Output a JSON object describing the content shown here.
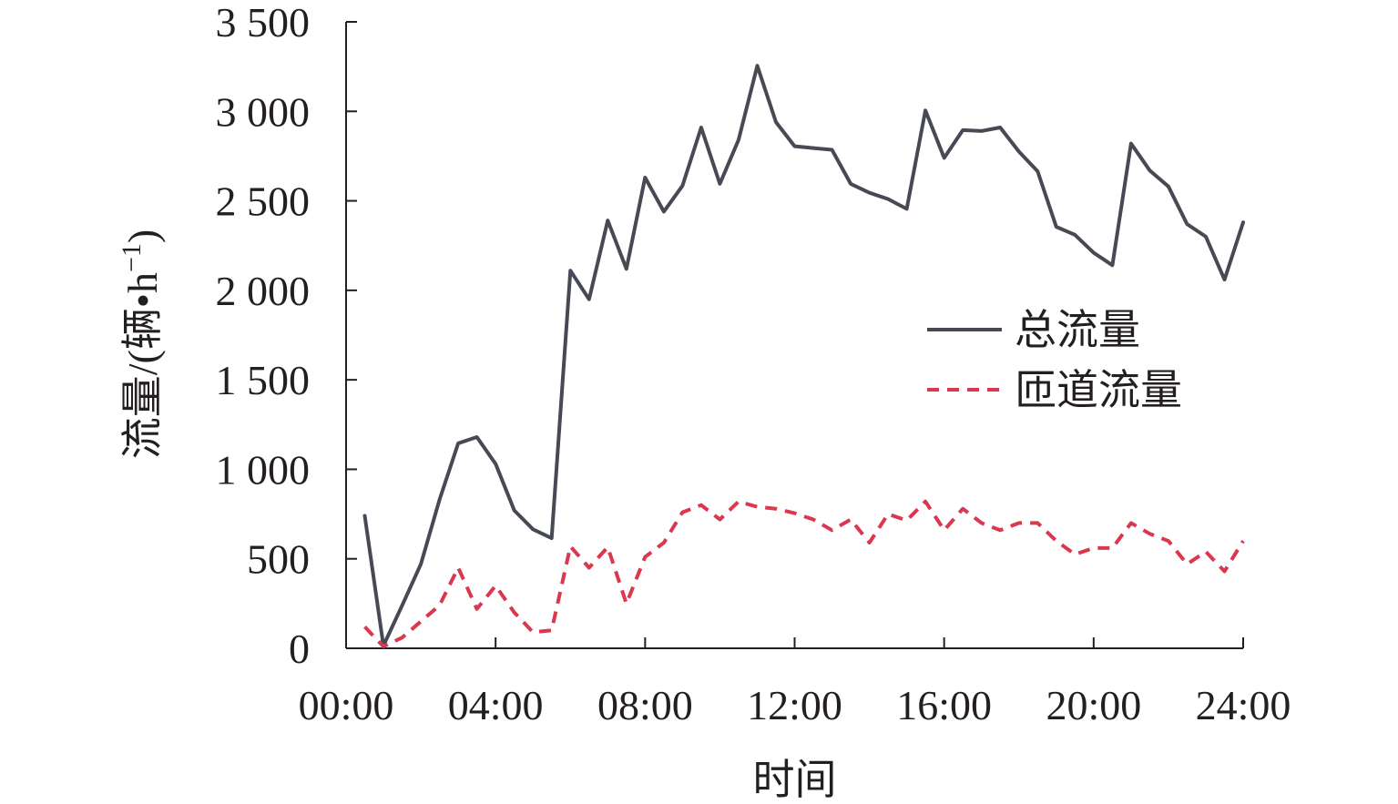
{
  "chart_data": {
    "type": "line",
    "xlabel": "时间",
    "ylabel": "流量/(辆•h",
    "ylabel_sup": "−1",
    "ylabel_close": ")",
    "xlim": [
      0,
      24
    ],
    "ylim": [
      0,
      3500
    ],
    "x_ticks": [
      0,
      4,
      8,
      12,
      16,
      20,
      24
    ],
    "x_tick_labels": [
      "00:00",
      "04:00",
      "08:00",
      "12:00",
      "16:00",
      "20:00",
      "24:00"
    ],
    "y_ticks": [
      0,
      500,
      1000,
      1500,
      2000,
      2500,
      3000,
      3500
    ],
    "y_tick_labels": [
      "0",
      "500",
      "1 000",
      "1 500",
      "2 000",
      "2 500",
      "3 000",
      "3 500"
    ],
    "grid": false,
    "legend_position": "right-middle",
    "x": [
      0.5,
      1,
      1.5,
      2,
      2.5,
      3,
      3.5,
      4,
      4.5,
      5,
      5.5,
      6,
      6.5,
      7,
      7.5,
      8,
      8.5,
      9,
      9.5,
      10,
      10.5,
      11,
      11.5,
      12,
      12.5,
      13,
      13.5,
      14,
      14.5,
      15,
      15.5,
      16,
      16.5,
      17,
      17.5,
      18,
      18.5,
      19,
      19.5,
      20,
      20.5,
      21,
      21.5,
      22,
      22.5,
      23,
      23.5,
      24
    ],
    "series": [
      {
        "name": "总流量",
        "color": "#474a54",
        "dash": "solid",
        "values": [
          740,
          15,
          240,
          470,
          830,
          1145,
          1180,
          1030,
          770,
          665,
          615,
          2110,
          1950,
          2390,
          2120,
          2630,
          2440,
          2585,
          2910,
          2595,
          2840,
          3255,
          2940,
          2805,
          2795,
          2785,
          2595,
          2545,
          2510,
          2455,
          3005,
          2740,
          2895,
          2890,
          2910,
          2775,
          2665,
          2355,
          2310,
          2210,
          2140,
          2820,
          2670,
          2580,
          2370,
          2300,
          2060,
          2380
        ]
      },
      {
        "name": "匝道流量",
        "color": "#d9384e",
        "dash": "dashed",
        "values": [
          120,
          10,
          60,
          150,
          240,
          450,
          220,
          350,
          200,
          90,
          100,
          570,
          450,
          565,
          250,
          510,
          590,
          760,
          800,
          720,
          820,
          790,
          780,
          755,
          720,
          660,
          720,
          590,
          750,
          715,
          820,
          660,
          780,
          700,
          660,
          700,
          700,
          600,
          525,
          560,
          560,
          700,
          640,
          600,
          470,
          540,
          430,
          600
        ]
      }
    ]
  }
}
